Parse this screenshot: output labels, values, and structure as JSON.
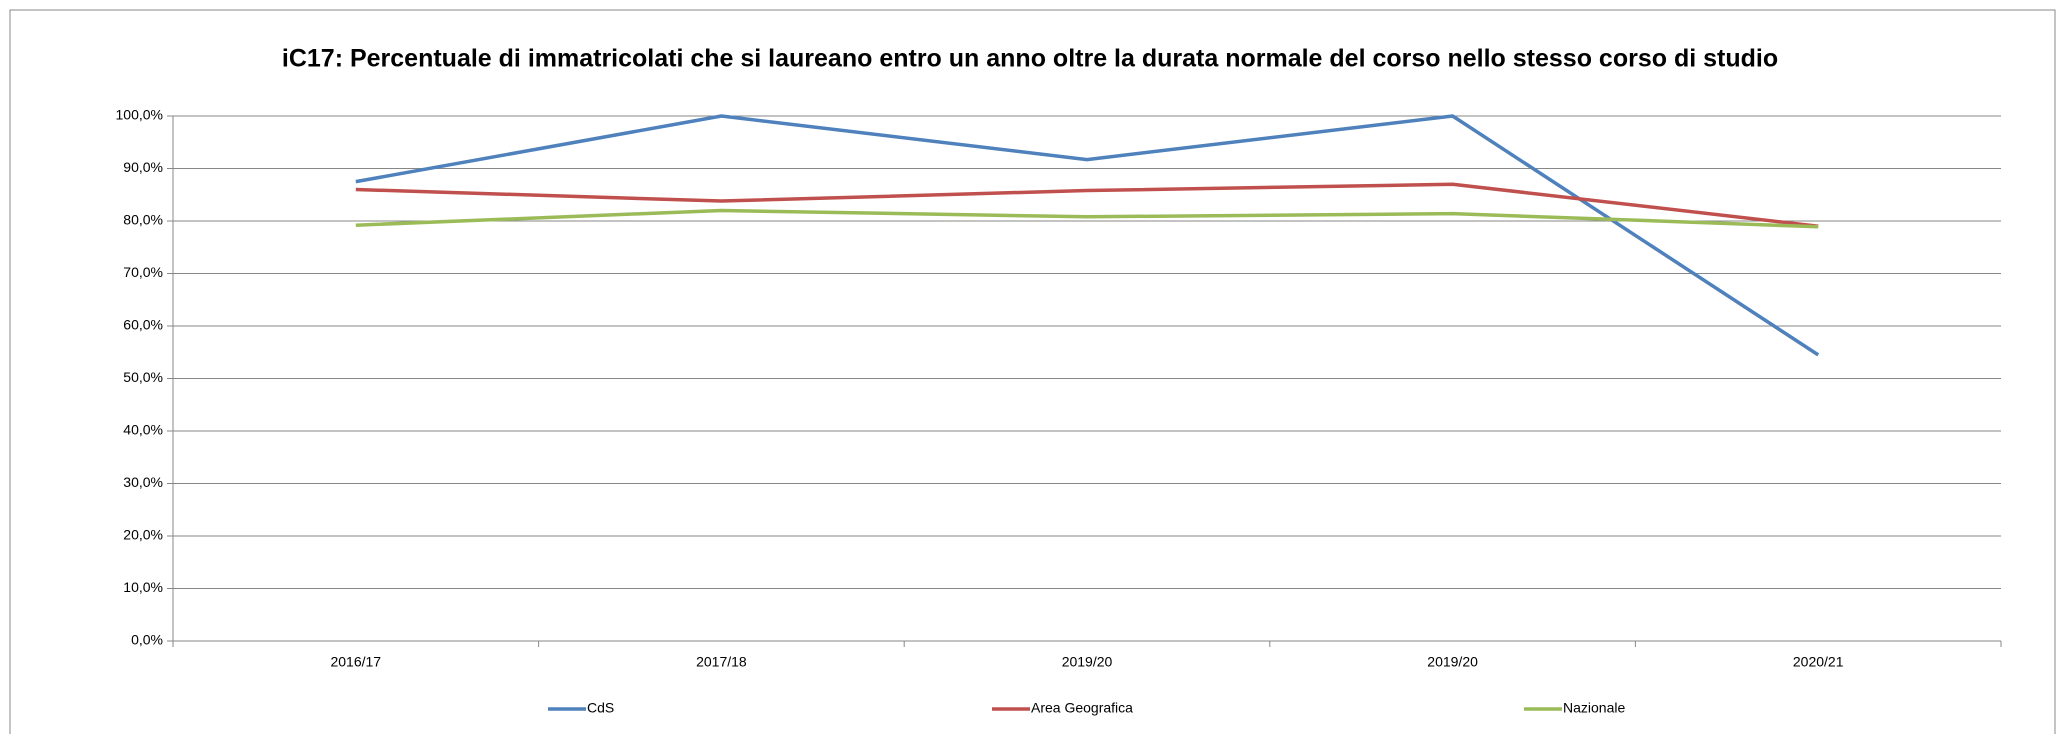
{
  "chart_data": {
    "type": "line",
    "title": "iC17: Percentuale di immatricolati che si laureano entro un anno oltre la durata normale del corso nello stesso corso di studio",
    "categories": [
      "2016/17",
      "2017/18",
      "2019/20",
      "2019/20",
      "2020/21"
    ],
    "series": [
      {
        "name": "CdS",
        "color": "#4f81bd",
        "values": [
          87.5,
          100,
          91.7,
          100,
          54.5
        ]
      },
      {
        "name": "Area Geografica",
        "color": "#c0504d",
        "values": [
          86.0,
          83.8,
          85.8,
          87.0,
          79.0
        ]
      },
      {
        "name": "Nazionale",
        "color": "#9bbb59",
        "values": [
          79.2,
          82.0,
          80.8,
          81.4,
          78.9
        ]
      }
    ],
    "ylim": [
      0,
      100
    ],
    "yticks": [
      {
        "value": 0,
        "label": "0,0%"
      },
      {
        "value": 10,
        "label": "10,0%"
      },
      {
        "value": 20,
        "label": "20,0%"
      },
      {
        "value": 30,
        "label": "30,0%"
      },
      {
        "value": 40,
        "label": "40,0%"
      },
      {
        "value": 50,
        "label": "50,0%"
      },
      {
        "value": 60,
        "label": "60,0%"
      },
      {
        "value": 70,
        "label": "70,0%"
      },
      {
        "value": 80,
        "label": "80,0%"
      },
      {
        "value": 90,
        "label": "90,0%"
      },
      {
        "value": 100,
        "label": "100,0%"
      }
    ],
    "grid": true,
    "legend": "bottom"
  }
}
